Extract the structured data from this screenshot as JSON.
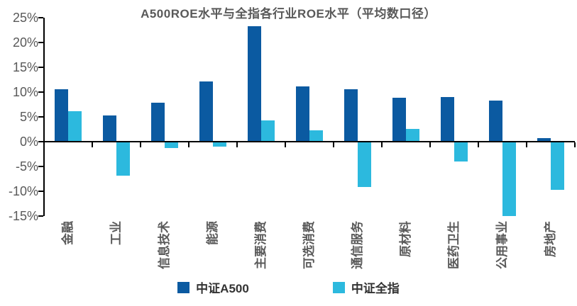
{
  "chart_data": {
    "type": "bar",
    "title": "A500ROE水平与全指各行业ROE水平（平均数口径）",
    "categories": [
      "金融",
      "工业",
      "信息技术",
      "能源",
      "主要消费",
      "可选消费",
      "通信服务",
      "原材料",
      "医药卫生",
      "公用事业",
      "房地产"
    ],
    "series": [
      {
        "name": "中证A500",
        "color": "#0B5AA1",
        "values": [
          10.4,
          5.2,
          7.7,
          12.0,
          23.1,
          11.0,
          10.4,
          8.7,
          8.8,
          8.1,
          0.6
        ]
      },
      {
        "name": "中证全指",
        "color": "#2CB9DE",
        "values": [
          6.0,
          -6.7,
          -1.2,
          -0.9,
          4.1,
          2.1,
          -9.0,
          2.4,
          -3.8,
          -14.9,
          -9.6
        ]
      }
    ],
    "xlabel": "",
    "ylabel": "",
    "ylim": [
      -15,
      25
    ],
    "ytick_step": 5,
    "ytick_labels": [
      "25%",
      "20%",
      "15%",
      "10%",
      "5%",
      "0%",
      "-5%",
      "-10%",
      "-15%"
    ],
    "grid": false,
    "legend_position": "bottom",
    "axis_color": "#000000",
    "label_color": "#595959"
  }
}
